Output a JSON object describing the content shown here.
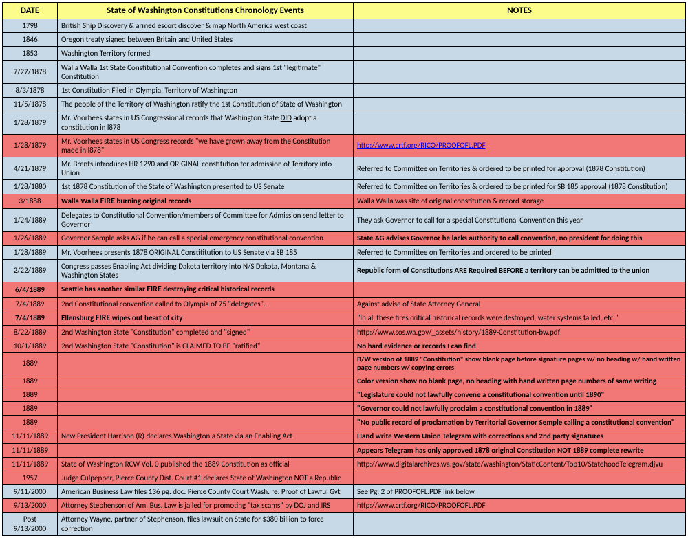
{
  "headers": {
    "date": "DATE",
    "event": "State of Washington Constitutions Chronology Events",
    "notes": "NOTES"
  },
  "rows": [
    {
      "date": "1798",
      "event": "British Ship Discovery & armed escort discover & map North America west coast",
      "notes": "",
      "bg": "blue",
      "bold_date": false,
      "bold_event": false,
      "bold_notes": false,
      "link_notes": false
    },
    {
      "date": "1846",
      "event": "Oregon treaty signed between Britain and United States",
      "notes": "",
      "bg": "blue",
      "bold_date": false,
      "bold_event": false,
      "bold_notes": false,
      "link_notes": false
    },
    {
      "date": "1853",
      "event": "Washington Territory formed",
      "notes": "",
      "bg": "blue",
      "bold_date": false,
      "bold_event": false,
      "bold_notes": false,
      "link_notes": false
    },
    {
      "date": "7/27/1878",
      "event": "Walla Walla 1st State Constitutional Convention completes and signs 1st \"legitimate\" Constitution",
      "notes": "",
      "bg": "blue",
      "bold_date": false,
      "bold_event": false,
      "bold_notes": false,
      "link_notes": false
    },
    {
      "date": "8/3/1878",
      "event": "1st Constitution Filed in Olympia, Territory of Washington",
      "notes": "",
      "bg": "blue",
      "bold_date": false,
      "bold_event": false,
      "bold_notes": false,
      "link_notes": false
    },
    {
      "date": "11/5/1878",
      "event": "The people of the Territory of Washington ratify the 1st Constitution of State of Washington",
      "notes": "",
      "bg": "blue",
      "bold_date": false,
      "bold_event": false,
      "bold_notes": false,
      "link_notes": false
    },
    {
      "date": "1/28/1879",
      "event": "Mr. Voorhees states in US Congressional records that Washington State <u>DID</u> adopt a constitution in l878",
      "notes": "",
      "bg": "blue",
      "bold_date": false,
      "bold_event": false,
      "bold_notes": false,
      "link_notes": false,
      "html_event": true
    },
    {
      "date": "1/28/1879",
      "event": "Mr. Voorhees states in US Congress records \"we have grown away from the Constitution made in l878\"",
      "notes": "http://www.crtf.org/RICO/PROOFOFL.PDF",
      "bg": "red",
      "bold_date": false,
      "bold_event": false,
      "bold_notes": false,
      "link_notes": true
    },
    {
      "date": "4/21/1879",
      "event": "Mr. Brents introduces HR 1290 and ORIGINAL constitution for admission of Territory into Union",
      "notes": "Referred to Committee on Territories & ordered to be printed for approval (1878 Constitution)",
      "bg": "blue",
      "bold_date": false,
      "bold_event": false,
      "bold_notes": false,
      "link_notes": false
    },
    {
      "date": "1/28/1880",
      "event": "1st 1878  Constitution of the State of Washington presented to US Senate",
      "notes": "Referred to Committee on Territories & ordered to be printed for SB 185 approval (1878 Constitution)",
      "bg": "blue",
      "bold_date": false,
      "bold_event": false,
      "bold_notes": false,
      "link_notes": false
    },
    {
      "date": "3/1888",
      "event": "Walla Walla <span class='fire'>FIRE</span> burning original records",
      "notes": "Walla Walla was site of original constitution & record storage",
      "bg": "red",
      "bold_date": false,
      "bold_event": true,
      "bold_notes": false,
      "link_notes": false,
      "html_event": true
    },
    {
      "date": "1/24/1889",
      "event": "Delegates to Constitutional Convention/members of Committee for Admission send letter to Governor",
      "notes": "They ask Governor to call for a special Constitutional Convention this year",
      "bg": "blue",
      "bold_date": false,
      "bold_event": false,
      "bold_notes": false,
      "link_notes": false
    },
    {
      "date": "1/26/1889",
      "event": "Governor Sample asks AG if he can call a special emergency constitutional convention",
      "notes": "State AG advises Governor he lacks authority to call convention, no president for doing this",
      "bg": "red",
      "bold_date": false,
      "bold_event": false,
      "bold_notes": true,
      "link_notes": false
    },
    {
      "date": "1/28/1889",
      "event": "Mr. Voorhees presents 1878 ORIGINAL Constititution to US Senate via SB 185",
      "notes": "Referred to Committee on Territories and ordered to be printed",
      "bg": "blue",
      "bold_date": false,
      "bold_event": false,
      "bold_notes": false,
      "link_notes": false
    },
    {
      "date": "2/22/1889",
      "event": "Congress passes Enabling Act dividing Dakota territory into N/S Dakota, Montana & Washington States",
      "notes": "Republic form of Constitutions ARE Required  BEFORE a territory can be admitted to the union",
      "bg": "blue",
      "bold_date": false,
      "bold_event": false,
      "bold_notes": true,
      "link_notes": false
    },
    {
      "date": "6/4/1889",
      "event": "Seattle has another similar <span class='fire'>FIRE</span> destroying critical historical records",
      "notes": "",
      "bg": "red",
      "bold_date": true,
      "bold_event": true,
      "bold_notes": false,
      "link_notes": false,
      "html_event": true
    },
    {
      "date": "7/4/1889",
      "event": "2nd Constitutional convention called to Olympia of 75 \"delegates\".",
      "notes": "Against advise of State Attorney General",
      "bg": "red",
      "bold_date": false,
      "bold_event": false,
      "bold_notes": false,
      "link_notes": false
    },
    {
      "date": "7/4/1889",
      "event": "Ellensburg <span class='fire'>FIRE</span> wipes out heart of city",
      "notes": "\"In all these fires critical historical records were destroyed, water systems failed, etc.\"",
      "bg": "red",
      "bold_date": true,
      "bold_event": true,
      "bold_notes": false,
      "link_notes": false,
      "html_event": true
    },
    {
      "date": "8/22/1889",
      "event": "2nd Washington State \"Constitution\" completed and \"signed\"",
      "notes": "http://www.sos.wa.gov/_assets/history/1889-Constitution-bw.pdf",
      "bg": "red",
      "bold_date": false,
      "bold_event": false,
      "bold_notes": false,
      "link_notes": false
    },
    {
      "date": "10/1/1889",
      "event": "2nd Washington State \"Constitution\"  is CLAIMED TO BE \"ratified\"",
      "notes": "No hard evidence or records I can find",
      "bg": "red",
      "bold_date": false,
      "bold_event": false,
      "bold_notes": true,
      "link_notes": false
    },
    {
      "date": "1889",
      "event": "",
      "notes": "B/W version of 1889 \"Constitution\" show blank page before signature pages w/ no heading w/ hand written page numbers w/ copying errors",
      "bg": "red",
      "bold_date": false,
      "bold_event": false,
      "bold_notes": true,
      "link_notes": false,
      "twoline": true
    },
    {
      "date": "1889",
      "event": "",
      "notes": "Color version show no blank page, no heading with hand written page numbers of same writing",
      "bg": "red",
      "bold_date": false,
      "bold_event": false,
      "bold_notes": true,
      "link_notes": false
    },
    {
      "date": "1889",
      "event": "",
      "notes": "\"Legislature could not lawfully convene a constitutional convention until 1890\"",
      "bg": "red",
      "bold_date": false,
      "bold_event": false,
      "bold_notes": true,
      "link_notes": false
    },
    {
      "date": "1889",
      "event": "",
      "notes": "\"Governor could not lawfully proclaim a constitutional convention in 1889\"",
      "bg": "red",
      "bold_date": false,
      "bold_event": false,
      "bold_notes": true,
      "link_notes": false
    },
    {
      "date": "1889",
      "event": "",
      "notes": "\"No public record of proclamation by Territorial Governor Semple calling a constitutional convention\"",
      "bg": "red",
      "bold_date": false,
      "bold_event": false,
      "bold_notes": true,
      "link_notes": false
    },
    {
      "date": "11/11/1889",
      "event": "New President Harrison (R) declares Washington a State via an Enabling Act",
      "notes": "Hand write Western Union Telegram with corrections and 2nd party signatures",
      "bg": "red",
      "bold_date": false,
      "bold_event": false,
      "bold_notes": true,
      "link_notes": false
    },
    {
      "date": "11/11/1889",
      "event": "",
      "notes": "Appears Telegram has only approved 1878 original Constitution NOT 1889 complete rewrite",
      "bg": "red",
      "bold_date": false,
      "bold_event": false,
      "bold_notes": true,
      "link_notes": false
    },
    {
      "date": "11/11/1889",
      "event": "State of Washington RCW Vol. 0 published the 1889 Constitution as official",
      "notes": "http://www.digitalarchives.wa.gov/state/washington/StaticContent/Top10/StatehoodTelegram.djvu",
      "bg": "red",
      "bold_date": false,
      "bold_event": false,
      "bold_notes": false,
      "link_notes": false
    },
    {
      "date": "1957",
      "event": "Judge Culpepper, Pierce County Dist. Court #1 declares State of Washington NOT a Republic",
      "notes": "",
      "bg": "red",
      "bold_date": false,
      "bold_event": false,
      "bold_notes": false,
      "link_notes": false
    },
    {
      "date": "9/11/2000",
      "event": "American Business Law files 136 pg. doc. Pierce County Court Wash. re. Proof of Lawful Gvt",
      "notes": "See Pg. 2 of PROOFOFL.PDF link below",
      "bg": "blue",
      "bold_date": false,
      "bold_event": false,
      "bold_notes": false,
      "link_notes": false
    },
    {
      "date": "9/13/2000",
      "event": "Attorney Stephenson of Am. Bus. Law is jailed for promoting \"tax scams\" by DOJ and IRS",
      "notes": "http://www.crtf.org/RICO/PROOFOFL.PDF",
      "bg": "red",
      "bold_date": false,
      "bold_event": false,
      "bold_notes": false,
      "link_notes": false
    },
    {
      "date": "Post 9/13/2000",
      "event": "Attorney Wayne, partner of Stephenson, files lawsuit on State for $380 billion to force correction",
      "notes": "",
      "bg": "blue",
      "bold_date": false,
      "bold_event": false,
      "bold_notes": false,
      "link_notes": false
    }
  ]
}
